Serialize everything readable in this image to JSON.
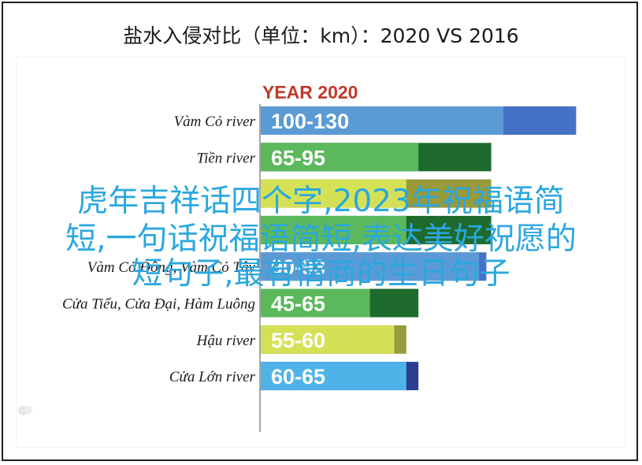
{
  "title": "盐水入侵对比（单位：km）：2020 VS 2016",
  "overlay": {
    "line1": "虎年吉祥话四个字,2023年祝福语简",
    "line2": "短,一句话祝福语简短,表达美好祝愿的",
    "line3": "短句子,最有情商的生日句子"
  },
  "colors": {
    "year_2020": "#c0392b",
    "blue_light": "#5b9bd5",
    "blue_dark": "#4472c4",
    "green_light": "#5cb85c",
    "green_dark": "#1e6b2d",
    "lime_light": "#d4e157",
    "lime_dark": "#9a9a3a",
    "lblue_light": "#4fb3e8",
    "lblue_dark": "#2c3e8f",
    "overlay_text": "#2aa7df"
  },
  "chart_data": {
    "type": "bar",
    "orientation": "horizontal",
    "title": "盐水入侵对比（单位：km）：2020 VS 2016",
    "group_label": "YEAR 2020",
    "categories": [
      "Vàm Cỏ river",
      "Tiền river",
      "",
      "",
      "Vàm Cỏ Đông, Vàm Cỏ Tây",
      "Cửa Tiểu, Cửa Đại, Hàm Luông",
      "Hậu river",
      "Cửa Lớn river"
    ],
    "ranges": [
      {
        "label": "100-130",
        "low": 100,
        "high": 130,
        "palette": "blue"
      },
      {
        "label": "65-95",
        "low": 65,
        "high": 95,
        "palette": "green"
      },
      {
        "label": "",
        "low": 60,
        "high": 95,
        "palette": "lime"
      },
      {
        "label": "",
        "low": 60,
        "high": 95,
        "palette": "green"
      },
      {
        "label": "90-93",
        "low": 90,
        "high": 93,
        "palette": "blue"
      },
      {
        "label": "45-65",
        "low": 45,
        "high": 65,
        "palette": "green"
      },
      {
        "label": "55-60",
        "low": 55,
        "high": 60,
        "palette": "lime"
      },
      {
        "label": "60-65",
        "low": 60,
        "high": 65,
        "palette": "lblue"
      }
    ],
    "xlim": [
      0,
      130
    ],
    "grid": false,
    "legend": "none"
  }
}
